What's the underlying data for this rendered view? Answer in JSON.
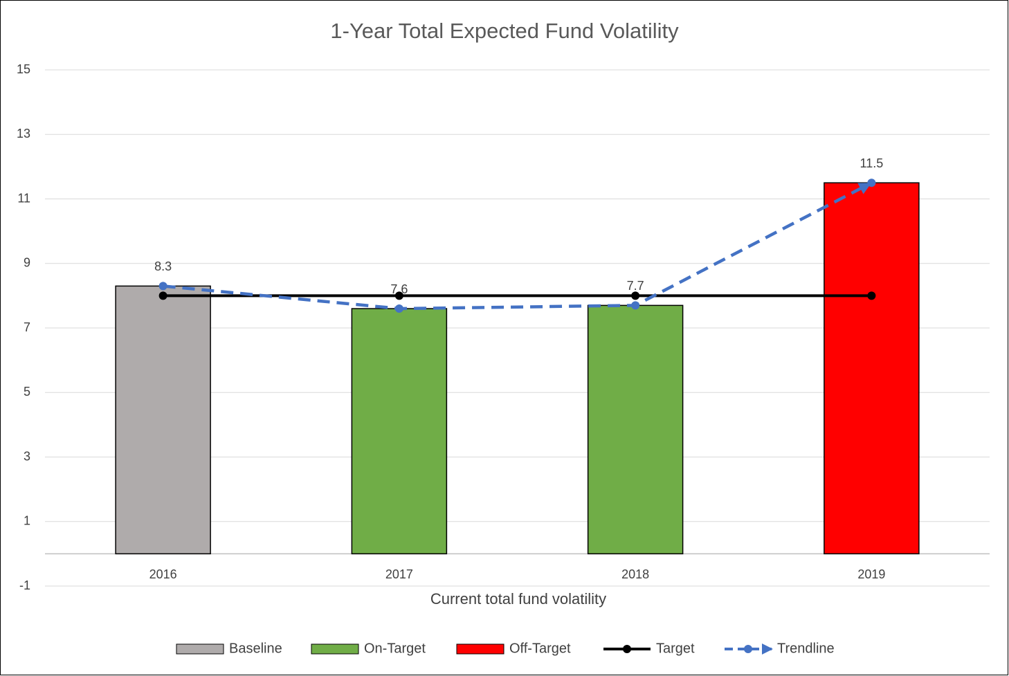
{
  "chart_data": {
    "type": "bar",
    "title": "1-Year Total Expected Fund Volatility",
    "x_label": "Current total fund volatility",
    "categories": [
      "2016",
      "2017",
      "2018",
      "2019"
    ],
    "series": [
      {
        "name": "Baseline",
        "kind": "bar",
        "color": "#afabab",
        "values": [
          8.3,
          null,
          null,
          null
        ]
      },
      {
        "name": "On-Target",
        "kind": "bar",
        "color": "#70ad47",
        "values": [
          null,
          7.6,
          7.7,
          null
        ]
      },
      {
        "name": "Off-Target",
        "kind": "bar",
        "color": "#ff0000",
        "values": [
          null,
          null,
          null,
          11.5
        ]
      },
      {
        "name": "Target",
        "kind": "line",
        "color": "#000000",
        "dashed": false,
        "values": [
          8,
          8,
          8,
          8
        ]
      },
      {
        "name": "Trendline",
        "kind": "line",
        "color": "#4472c4",
        "dashed": true,
        "arrow": true,
        "values": [
          8.3,
          7.6,
          7.7,
          11.5
        ]
      }
    ],
    "ylim": [
      -1,
      15
    ],
    "yticks": [
      -1,
      1,
      3,
      5,
      7,
      9,
      11,
      13,
      15
    ],
    "grid": true,
    "data_labels": true,
    "legend": "bottom"
  }
}
